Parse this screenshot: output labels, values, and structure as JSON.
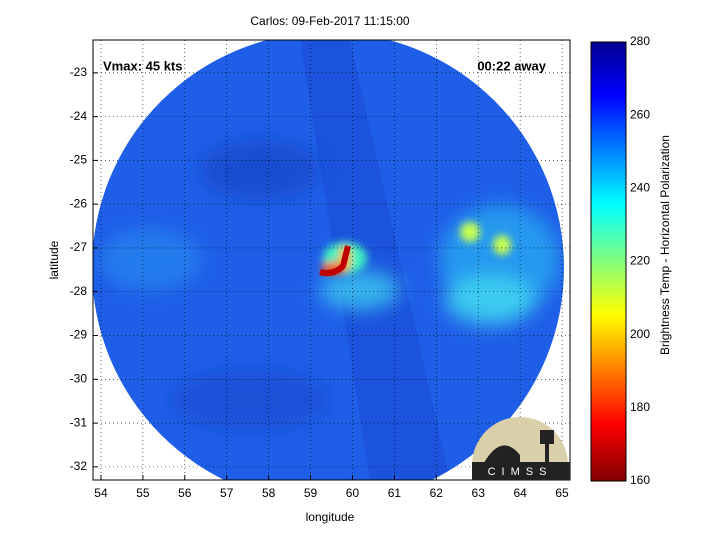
{
  "chart_data": {
    "type": "image",
    "title": "Carlos: 09-Feb-2017 11:15:00",
    "annotations": [
      "Vmax: 45 kts",
      "00:22 away"
    ],
    "xlabel": "longitude",
    "ylabel": "latitude",
    "xlim": [
      53.81,
      65.19
    ],
    "ylim": [
      -32.3,
      -22.25
    ],
    "xticks": [
      54,
      55,
      56,
      57,
      58,
      59,
      60,
      61,
      62,
      63,
      64,
      65
    ],
    "yticks": [
      -23,
      -24,
      -25,
      -26,
      -27,
      -28,
      -29,
      -30,
      -31,
      -32
    ],
    "grid": true,
    "colorbar": {
      "label": "Brightness Temp - Horizontal Polarization",
      "lim": [
        160,
        280
      ],
      "ticks": [
        160,
        180,
        200,
        220,
        240,
        260,
        280
      ],
      "colormap": "jet"
    },
    "logo": "CIMSS"
  }
}
